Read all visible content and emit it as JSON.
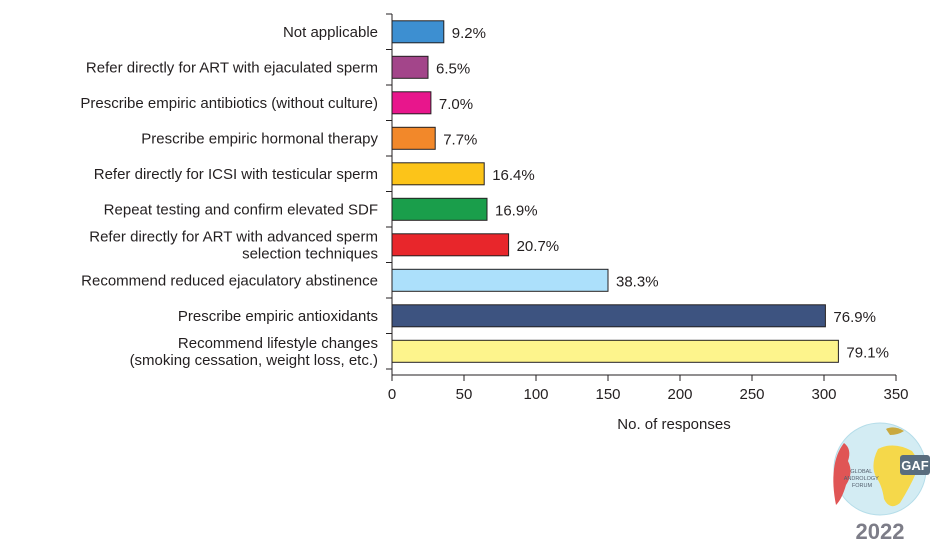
{
  "chart_data": {
    "type": "bar",
    "orientation": "horizontal",
    "title": "",
    "xlabel": "No. of responses",
    "ylabel": "",
    "xlim": [
      0,
      350
    ],
    "x_ticks": [
      0,
      50,
      100,
      150,
      200,
      250,
      300,
      350
    ],
    "grid": false,
    "categories": [
      [
        "Not applicable"
      ],
      [
        "Refer directly for ART with ejaculated sperm"
      ],
      [
        "Prescribe empiric antibiotics (without culture)"
      ],
      [
        "Prescribe empiric hormonal therapy"
      ],
      [
        "Refer directly for ICSI with testicular sperm"
      ],
      [
        "Repeat testing and confirm elevated SDF"
      ],
      [
        "Refer directly for ART with advanced sperm",
        "selection techniques"
      ],
      [
        "Recommend reduced ejaculatory abstinence"
      ],
      [
        "Prescribe empiric antioxidants"
      ],
      [
        "Recommend lifestyle changes",
        "(smoking cessation, weight loss, etc.)"
      ]
    ],
    "values": [
      36,
      25,
      27,
      30,
      64,
      66,
      81,
      150,
      301,
      310
    ],
    "value_labels": [
      "9.2%",
      "6.5%",
      "7.0%",
      "7.7%",
      "16.4%",
      "16.9%",
      "20.7%",
      "38.3%",
      "76.9%",
      "79.1%"
    ],
    "colors": [
      "#3d8fd1",
      "#a3458a",
      "#e8168c",
      "#f2882a",
      "#fcc419",
      "#1a9e4b",
      "#e8262b",
      "#ace0fb",
      "#3d5380",
      "#fdf48c"
    ]
  },
  "logo": {
    "text_lines": [
      "GLOBAL",
      "ANDROLOGY",
      "FORUM"
    ],
    "mark": "GAF",
    "year": "2022"
  }
}
